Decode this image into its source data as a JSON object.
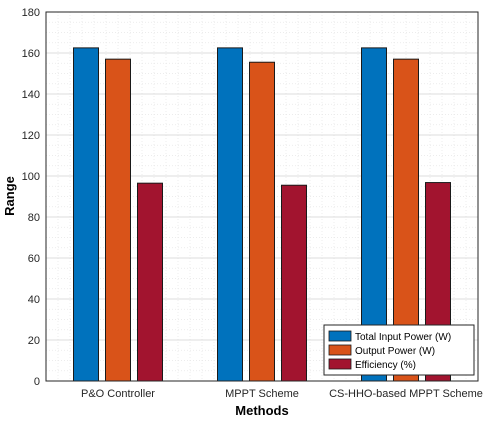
{
  "chart_data": {
    "type": "bar",
    "categories": [
      "P&O Controller",
      "MPPT Scheme",
      "CS-HHO-based MPPT Scheme"
    ],
    "series": [
      {
        "name": "Total Input Power (W)",
        "values": [
          162.5,
          162.5,
          162.5
        ],
        "color": "#0072BD"
      },
      {
        "name": "Output Power (W)",
        "values": [
          157,
          155.5,
          157
        ],
        "color": "#D95319"
      },
      {
        "name": "Efficiency (%)",
        "values": [
          96.5,
          95.5,
          96.8
        ],
        "color": "#A2142F"
      }
    ],
    "xlabel": "Methods",
    "ylabel": "Range",
    "ylim": [
      0,
      180
    ],
    "yticks": [
      0,
      20,
      40,
      60,
      80,
      100,
      120,
      140,
      160,
      180
    ],
    "grid": true,
    "minor_grid": true,
    "legend_position": "bottom-right"
  }
}
